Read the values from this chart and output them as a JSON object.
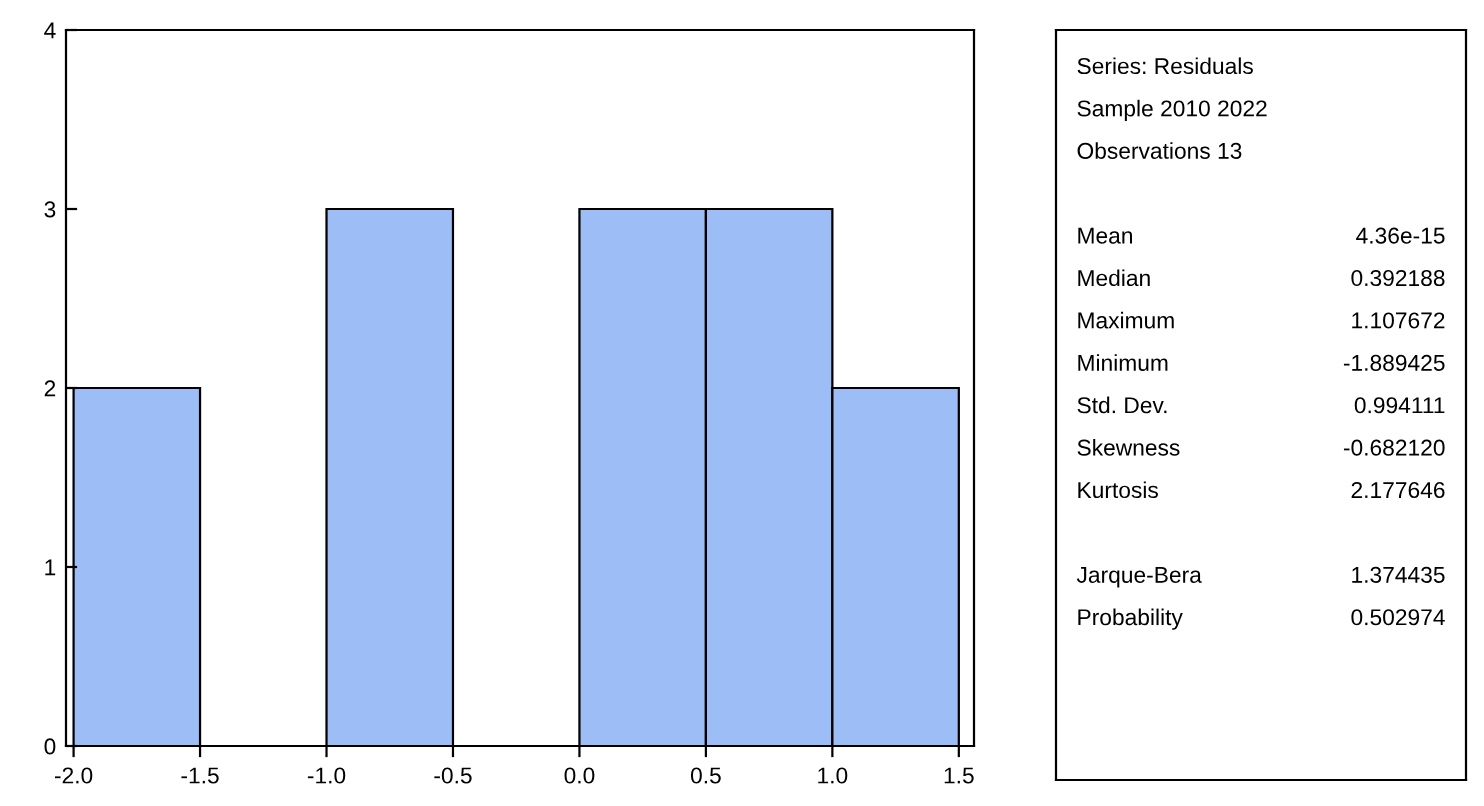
{
  "chart_data": [
    {
      "type": "histogram",
      "bins": [
        -2.0,
        -1.5,
        -1.0,
        -0.5,
        0.0,
        0.5,
        1.0,
        1.5
      ],
      "values": [
        2,
        0,
        3,
        0,
        3,
        3,
        2
      ],
      "color": "#9dbdf7",
      "xlim": [
        -2.03,
        1.56
      ],
      "xticks": [
        {
          "value": -2.0,
          "label": "-2.0"
        },
        {
          "value": -1.5,
          "label": "-1.5"
        },
        {
          "value": -1.0,
          "label": "-1.0"
        },
        {
          "value": -0.5,
          "label": "-0.5"
        },
        {
          "value": 0.0,
          "label": "0.0"
        },
        {
          "value": 0.5,
          "label": "0.5"
        },
        {
          "value": 1.0,
          "label": "1.0"
        },
        {
          "value": 1.5,
          "label": "1.5"
        }
      ],
      "ylim": [
        0,
        4
      ],
      "yticks": [
        0,
        1,
        2,
        3,
        4
      ],
      "grid": false
    },
    {
      "type": "other",
      "annotations": [
        "Series: Residuals",
        "Sample 2010 2022",
        "Observations 13"
      ],
      "categories": [
        null,
        "Mean",
        "Median",
        "Maximum",
        "Minimum",
        "Std. Dev.",
        "Skewness",
        "Kurtosis",
        null,
        "Jarque-Bera",
        "Probability"
      ],
      "value_labels": [
        null,
        "4.36e-15",
        "0.392188",
        "1.107672",
        "-1.889425",
        "0.994111",
        "-0.682120",
        "2.177646",
        null,
        "1.374435",
        "0.502974"
      ]
    }
  ]
}
